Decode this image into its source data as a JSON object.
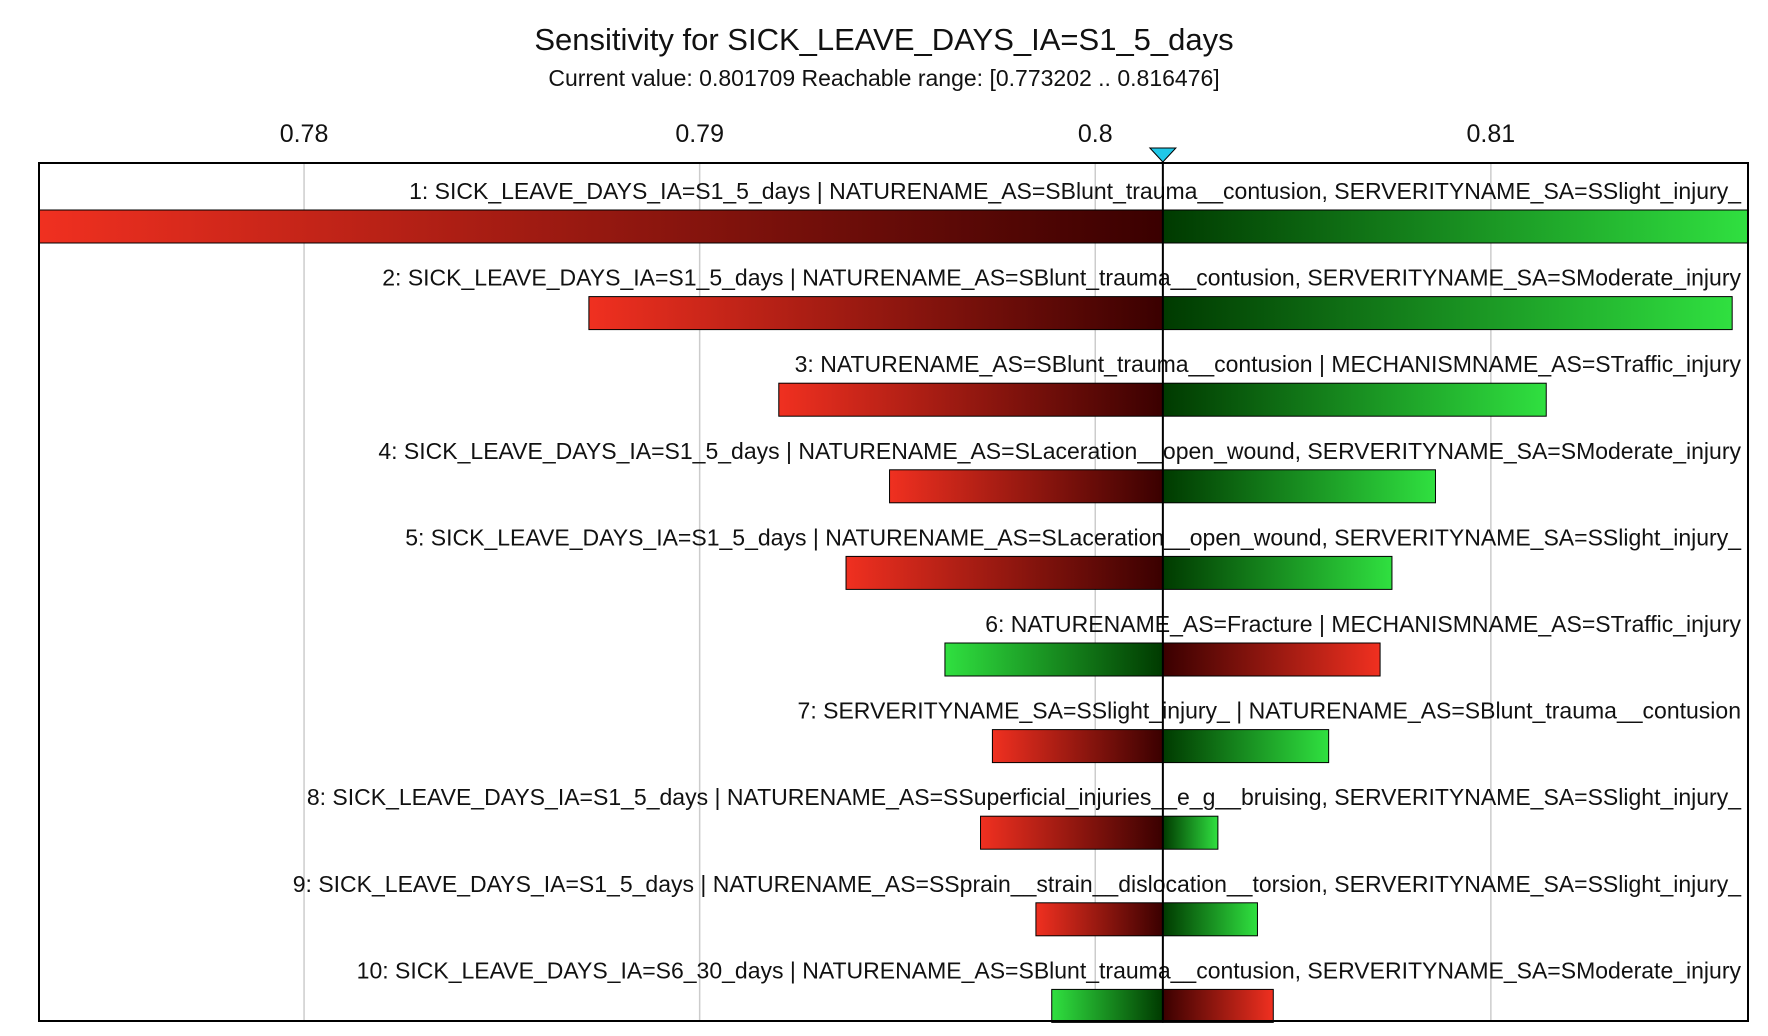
{
  "chart_data": {
    "type": "bar",
    "orientation": "horizontal",
    "subtype": "tornado",
    "title": "Sensitivity for SICK_LEAVE_DAYS_IA=S1_5_days",
    "subtitle": "Current value: 0.801709  Reachable range: [0.773202 .. 0.816476]",
    "current_value": 0.801709,
    "reachable_range": [
      0.773202,
      0.816476
    ],
    "xlim": [
      0.7733,
      0.8165
    ],
    "x_ticks": [
      {
        "value": 0.78,
        "label": "0.78"
      },
      {
        "value": 0.79,
        "label": "0.79"
      },
      {
        "value": 0.8,
        "label": "0.8"
      },
      {
        "value": 0.81,
        "label": "0.81"
      }
    ],
    "grid": true,
    "colors": {
      "red": "#f03020",
      "dark_red": "#3a0000",
      "green": "#30e040",
      "dark_green": "#003a00",
      "marker": "#20c8e8"
    },
    "bars": [
      {
        "label": "1: SICK_LEAVE_DAYS_IA=S1_5_days | NATURENAME_AS=SBlunt_trauma__contusion, SERVERITYNAME_SA=SSlight_injury_",
        "low": 0.7733,
        "high": 0.8165,
        "left_color": "red"
      },
      {
        "label": "2: SICK_LEAVE_DAYS_IA=S1_5_days | NATURENAME_AS=SBlunt_trauma__contusion, SERVERITYNAME_SA=SModerate_injury",
        "low": 0.7872,
        "high": 0.8161,
        "left_color": "red"
      },
      {
        "label": "3: NATURENAME_AS=SBlunt_trauma__contusion | MECHANISMNAME_AS=STraffic_injury",
        "low": 0.792,
        "high": 0.8114,
        "left_color": "red"
      },
      {
        "label": "4: SICK_LEAVE_DAYS_IA=S1_5_days | NATURENAME_AS=SLaceration__open_wound, SERVERITYNAME_SA=SModerate_injury",
        "low": 0.7948,
        "high": 0.8086,
        "left_color": "red"
      },
      {
        "label": "5: SICK_LEAVE_DAYS_IA=S1_5_days | NATURENAME_AS=SLaceration__open_wound, SERVERITYNAME_SA=SSlight_injury_",
        "low": 0.7937,
        "high": 0.8075,
        "left_color": "red"
      },
      {
        "label": "6: NATURENAME_AS=Fracture | MECHANISMNAME_AS=STraffic_injury",
        "low": 0.7962,
        "high": 0.8072,
        "left_color": "green"
      },
      {
        "label": "7: SERVERITYNAME_SA=SSlight_injury_ | NATURENAME_AS=SBlunt_trauma__contusion",
        "low": 0.7974,
        "high": 0.8059,
        "left_color": "red"
      },
      {
        "label": "8: SICK_LEAVE_DAYS_IA=S1_5_days | NATURENAME_AS=SSuperficial_injuries__e_g__bruising, SERVERITYNAME_SA=SSlight_injury_",
        "low": 0.7971,
        "high": 0.8031,
        "left_color": "red"
      },
      {
        "label": "9: SICK_LEAVE_DAYS_IA=S1_5_days | NATURENAME_AS=SSprain__strain__dislocation__torsion, SERVERITYNAME_SA=SSlight_injury_",
        "low": 0.7985,
        "high": 0.8041,
        "left_color": "red"
      },
      {
        "label": "10: SICK_LEAVE_DAYS_IA=S6_30_days | NATURENAME_AS=SBlunt_trauma__contusion, SERVERITYNAME_SA=SModerate_injury",
        "low": 0.7989,
        "high": 0.8045,
        "left_color": "green"
      }
    ]
  }
}
